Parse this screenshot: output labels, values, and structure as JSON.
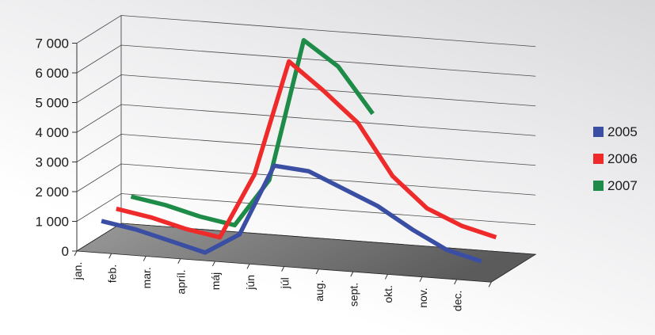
{
  "chart_data": {
    "type": "line",
    "categories": [
      "jan.",
      "feb.",
      "mar.",
      "apríl.",
      "máj",
      "jún",
      "júl",
      "aug.",
      "sept.",
      "okt.",
      "nov.",
      "dec."
    ],
    "series": [
      {
        "name": "2005",
        "color": "#3a4fa3",
        "values": [
          900,
          700,
          400,
          100,
          800,
          3200,
          3100,
          2600,
          2100,
          1400,
          800,
          500
        ]
      },
      {
        "name": "2006",
        "color": "#ee2a2a",
        "values": [
          1000,
          800,
          500,
          300,
          2500,
          6400,
          5500,
          4500,
          2800,
          1800,
          1300,
          1000
        ]
      },
      {
        "name": "2007",
        "color": "#1e8c48",
        "values": [
          1100,
          900,
          600,
          400,
          2000,
          6800,
          6000,
          4500,
          null,
          null,
          null,
          null
        ]
      }
    ],
    "y_ticks": [
      "0",
      "1 000",
      "2 000",
      "3 000",
      "4 000",
      "5 000",
      "6 000",
      "7 000"
    ],
    "ylim": [
      0,
      7000
    ],
    "legend_position": "right",
    "grid": true
  }
}
